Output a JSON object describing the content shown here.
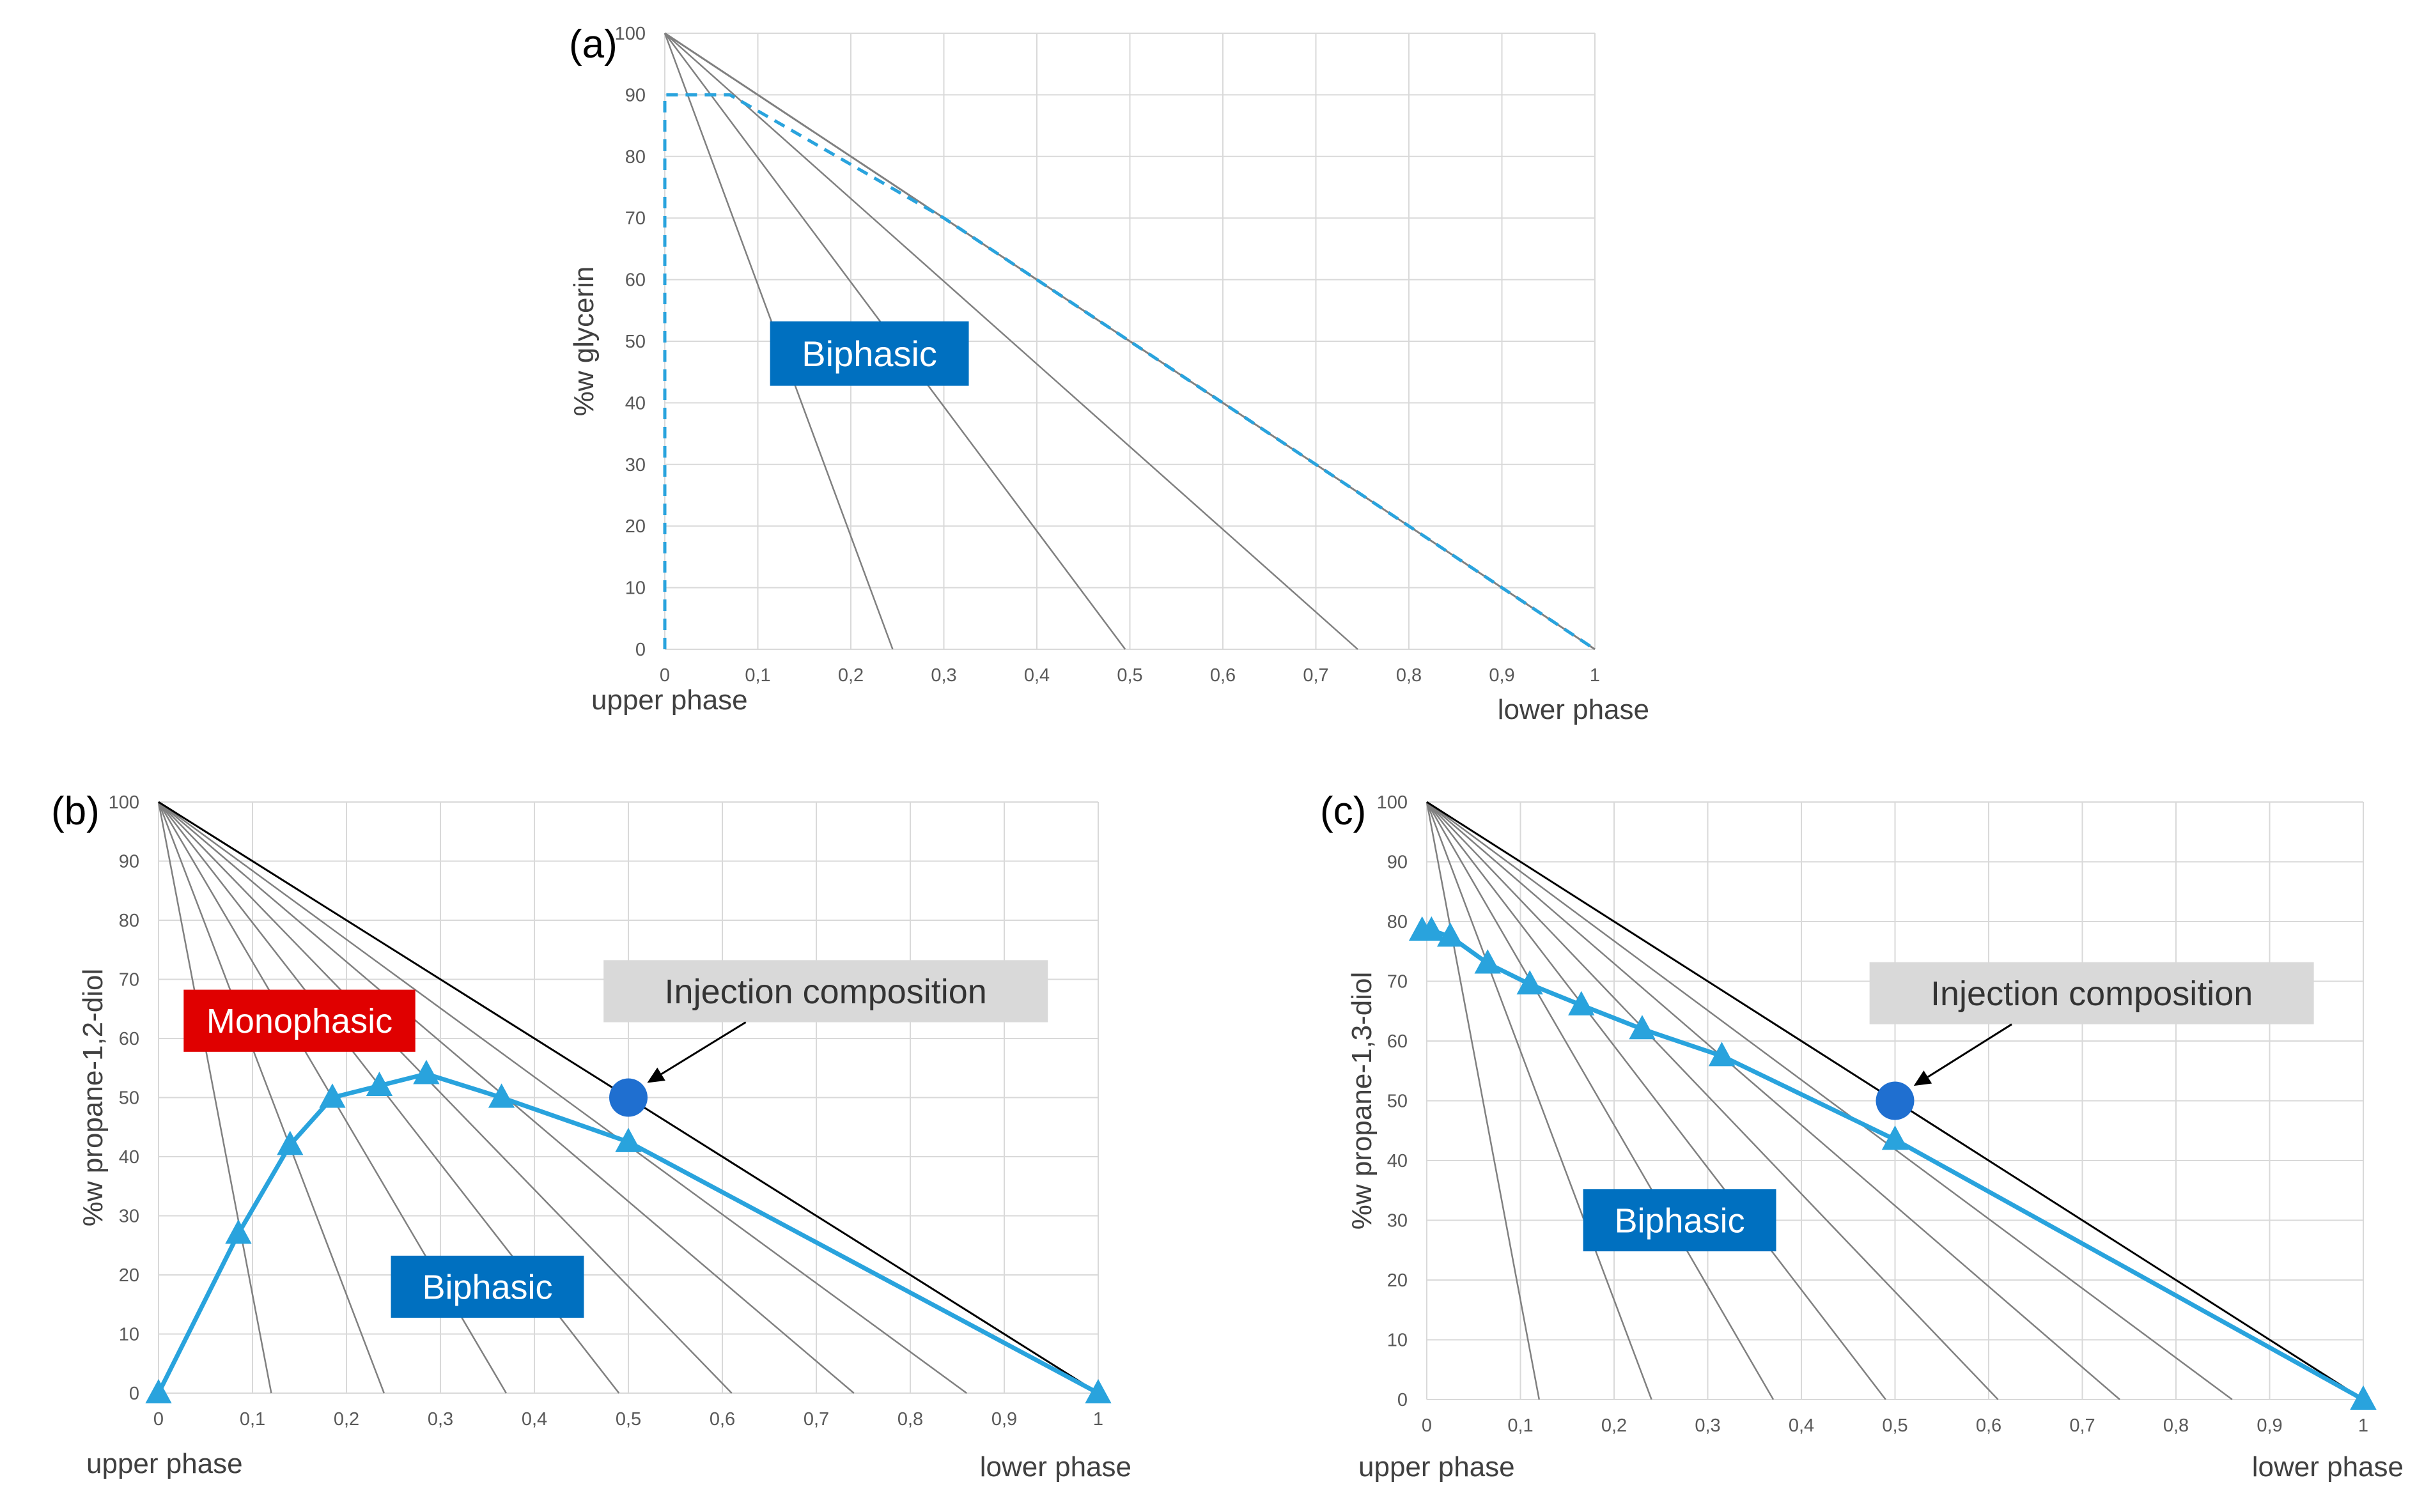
{
  "figure": {
    "background": "#ffffff",
    "colors": {
      "grid": "#d9d9d9",
      "line": "#808080",
      "hypotenuse": "#000000",
      "series": "#29a3dd",
      "tick_text": "#595959",
      "box_blue": "#0070c0",
      "box_red": "#e00000",
      "box_gray": "#d9d9d9",
      "box_text_light": "#ffffff",
      "box_text_dark": "#333333",
      "point_blue": "#1f6fd0"
    }
  },
  "chart_data": [
    {
      "id": "a",
      "type": "line",
      "panel_label": "(a)",
      "ylabel": "%w glycerin",
      "x_end_labels": {
        "left": "upper phase",
        "right": "lower phase"
      },
      "xlim": [
        0,
        1
      ],
      "ylim": [
        0,
        100
      ],
      "x_ticks": [
        0,
        0.1,
        0.2,
        0.3,
        0.4,
        0.5,
        0.6,
        0.7,
        0.8,
        0.9,
        1
      ],
      "x_tick_labels": [
        "0",
        "0,1",
        "0,2",
        "0,3",
        "0,4",
        "0,5",
        "0,6",
        "0,7",
        "0,8",
        "0,9",
        "1"
      ],
      "y_ticks": [
        0,
        10,
        20,
        30,
        40,
        50,
        60,
        70,
        80,
        90,
        100
      ],
      "y_tick_labels": [
        "0",
        "10",
        "20",
        "30",
        "40",
        "50",
        "60",
        "70",
        "80",
        "90",
        "100"
      ],
      "grid": true,
      "fan_lines": {
        "origin": [
          0,
          100
        ],
        "x_at_zero": [
          0.245,
          0.495,
          0.745,
          1.0
        ],
        "last_is_dark": false
      },
      "series": [
        {
          "style": "dashed",
          "points": [
            [
              0,
              0
            ],
            [
              0,
              90
            ],
            [
              0.07,
              90
            ],
            [
              0.3,
              70
            ],
            [
              0.6,
              40
            ],
            [
              0.8,
              20
            ],
            [
              1,
              0
            ]
          ],
          "marker": "none"
        }
      ],
      "boxes": [
        {
          "text": "Biphasic",
          "style": "blue",
          "cx": 0.22,
          "cy": 48
        }
      ]
    },
    {
      "id": "b",
      "type": "line",
      "panel_label": "(b)",
      "ylabel": "%w propane-1,2-diol",
      "x_end_labels": {
        "left": "upper phase",
        "right": "lower phase"
      },
      "xlim": [
        0,
        1
      ],
      "ylim": [
        0,
        100
      ],
      "x_ticks": [
        0,
        0.1,
        0.2,
        0.3,
        0.4,
        0.5,
        0.6,
        0.7,
        0.8,
        0.9,
        1
      ],
      "x_tick_labels": [
        "0",
        "0,1",
        "0,2",
        "0,3",
        "0,4",
        "0,5",
        "0,6",
        "0,7",
        "0,8",
        "0,9",
        "1"
      ],
      "y_ticks": [
        0,
        10,
        20,
        30,
        40,
        50,
        60,
        70,
        80,
        90,
        100
      ],
      "y_tick_labels": [
        "0",
        "10",
        "20",
        "30",
        "40",
        "50",
        "60",
        "70",
        "80",
        "90",
        "100"
      ],
      "grid": true,
      "fan_lines": {
        "origin": [
          0,
          100
        ],
        "x_at_zero": [
          0.12,
          0.24,
          0.37,
          0.49,
          0.61,
          0.74,
          0.86,
          1.0
        ],
        "last_is_dark": true
      },
      "series": [
        {
          "style": "solid",
          "marker": "triangle",
          "points": [
            [
              0,
              0
            ],
            [
              0.085,
              27
            ],
            [
              0.14,
              42
            ],
            [
              0.185,
              50
            ],
            [
              0.235,
              52
            ],
            [
              0.285,
              54
            ],
            [
              0.365,
              50
            ],
            [
              0.5,
              42.5
            ],
            [
              1,
              0
            ]
          ]
        }
      ],
      "injection_point": {
        "x": 0.5,
        "y": 50
      },
      "boxes": [
        {
          "text": "Monophasic",
          "style": "red",
          "cx": 0.15,
          "cy": 63
        },
        {
          "text": "Biphasic",
          "style": "blue",
          "cx": 0.35,
          "cy": 18
        },
        {
          "text": "Injection composition",
          "style": "gray",
          "cx": 0.71,
          "cy": 68,
          "arrow_to": [
            0.52,
            52.5
          ]
        }
      ]
    },
    {
      "id": "c",
      "type": "line",
      "panel_label": "(c)",
      "ylabel": "%w propane-1,3-diol",
      "x_end_labels": {
        "left": "upper phase",
        "right": "lower phase"
      },
      "xlim": [
        0,
        1
      ],
      "ylim": [
        0,
        100
      ],
      "x_ticks": [
        0,
        0.1,
        0.2,
        0.3,
        0.4,
        0.5,
        0.6,
        0.7,
        0.8,
        0.9,
        1
      ],
      "x_tick_labels": [
        "0",
        "0,1",
        "0,2",
        "0,3",
        "0,4",
        "0,5",
        "0,6",
        "0,7",
        "0,8",
        "0,9",
        "1"
      ],
      "y_ticks": [
        0,
        10,
        20,
        30,
        40,
        50,
        60,
        70,
        80,
        90,
        100
      ],
      "y_tick_labels": [
        "0",
        "10",
        "20",
        "30",
        "40",
        "50",
        "60",
        "70",
        "80",
        "90",
        "100"
      ],
      "grid": true,
      "fan_lines": {
        "origin": [
          0,
          100
        ],
        "x_at_zero": [
          0.12,
          0.24,
          0.37,
          0.49,
          0.61,
          0.74,
          0.86,
          1.0
        ],
        "last_is_dark": true
      },
      "series": [
        {
          "style": "solid",
          "marker": "triangle",
          "points": [
            [
              -0.005,
              78.5
            ],
            [
              0.005,
              78.5
            ],
            [
              0.025,
              77.5
            ],
            [
              0.065,
              73
            ],
            [
              0.11,
              69.5
            ],
            [
              0.165,
              66
            ],
            [
              0.23,
              62
            ],
            [
              0.315,
              57.5
            ],
            [
              0.5,
              43.5
            ],
            [
              1,
              0
            ]
          ]
        }
      ],
      "injection_point": {
        "x": 0.5,
        "y": 50
      },
      "boxes": [
        {
          "text": "Biphasic",
          "style": "blue",
          "cx": 0.27,
          "cy": 30
        },
        {
          "text": "Injection composition",
          "style": "gray",
          "cx": 0.71,
          "cy": 68,
          "arrow_to": [
            0.52,
            52.5
          ]
        }
      ]
    }
  ]
}
